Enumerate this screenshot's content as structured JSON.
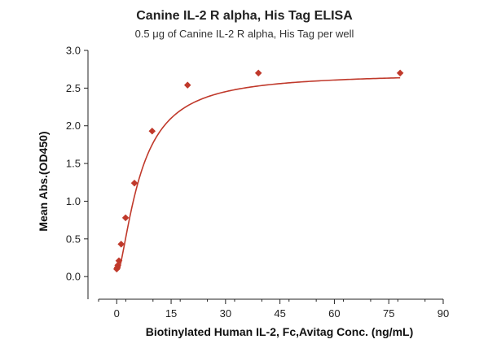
{
  "chart_data": {
    "type": "scatter",
    "title": "Canine IL-2 R alpha, His Tag ELISA",
    "subtitle": "0.5 μg of Canine IL-2 R alpha, His Tag per well",
    "xlabel": "Biotinylated Human IL-2, Fc,Avitag Conc. (ng/mL)",
    "ylabel": "Mean Abs.(OD450)",
    "xlim": [
      -5,
      90
    ],
    "ylim": [
      -0.3,
      3.0
    ],
    "xticks": [
      0,
      15,
      30,
      45,
      60,
      75,
      90
    ],
    "yticks": [
      0.0,
      0.5,
      1.0,
      1.5,
      2.0,
      2.5,
      3.0
    ],
    "x_tick_labels": [
      "0",
      "15",
      "30",
      "45",
      "60",
      "75",
      "90"
    ],
    "y_tick_labels": [
      "0.0",
      "0.5",
      "1.0",
      "1.5",
      "2.0",
      "2.5",
      "3.0"
    ],
    "grid": false,
    "color": "#c0392b",
    "series": [
      {
        "x": [
          0.0,
          0.15,
          0.31,
          0.61,
          1.22,
          2.44,
          4.88,
          9.77,
          19.53,
          39.06,
          78.13
        ],
        "y": [
          0.1,
          0.12,
          0.15,
          0.21,
          0.43,
          0.78,
          1.24,
          1.93,
          2.54,
          2.7,
          2.7
        ],
        "fit": {
          "model": "hill",
          "top": 2.7,
          "ec50": 6.5,
          "n": 1.5
        }
      }
    ]
  }
}
